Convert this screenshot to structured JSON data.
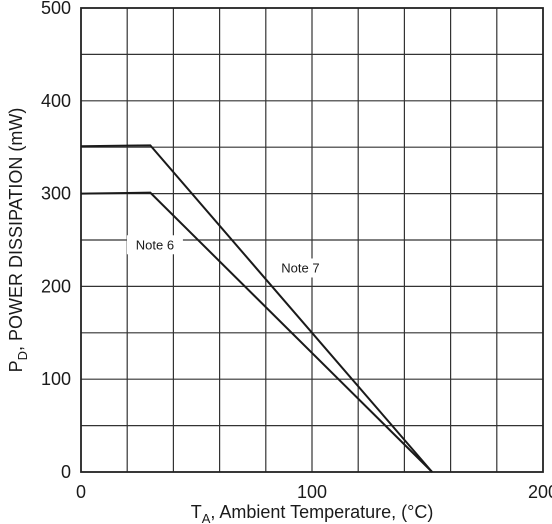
{
  "chart_data": {
    "type": "line",
    "xlabel_main": "T",
    "xlabel_sub": "A",
    "xlabel_rest": ", Ambient Temperature, (°C)",
    "ylabel_main": "P",
    "ylabel_sub": "D",
    "ylabel_rest": ", POWER DISSIPATION (mW)",
    "xlim": [
      0,
      200
    ],
    "ylim": [
      0,
      500
    ],
    "x_ticks": [
      0,
      100,
      200
    ],
    "y_ticks": [
      0,
      100,
      200,
      300,
      400,
      500
    ],
    "x_grid_step": 20,
    "y_grid_step": 50,
    "grid": true,
    "series": [
      {
        "name": "Note 6",
        "x": [
          0,
          30,
          152
        ],
        "y": [
          300,
          301,
          0
        ]
      },
      {
        "name": "Note 7",
        "x": [
          0,
          30,
          152
        ],
        "y": [
          351,
          352,
          0
        ]
      }
    ],
    "annotations": [
      {
        "text": "Note 6",
        "x": 32,
        "y": 240
      },
      {
        "text": "Note 7",
        "x": 95,
        "y": 215
      }
    ]
  }
}
